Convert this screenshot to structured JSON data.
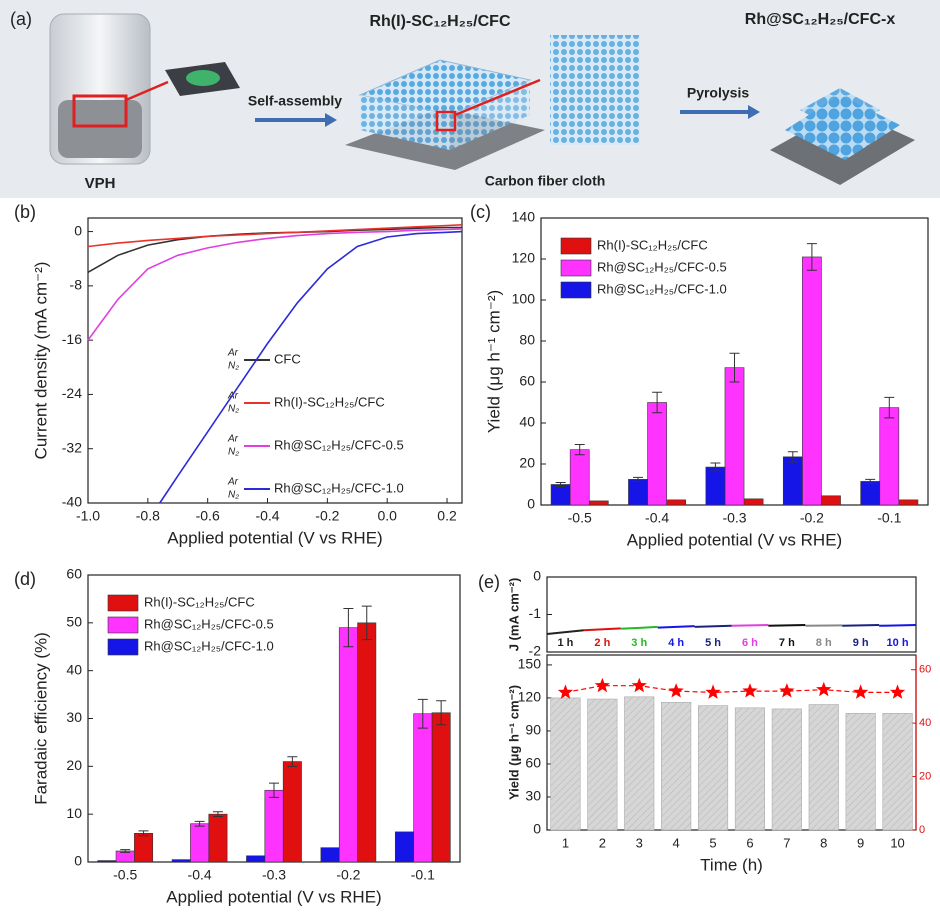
{
  "schematic": {
    "panel_label": "(a)",
    "vial_label": "VPH",
    "step1": "Self-assembly",
    "intermediate": "Rh(I)-SC₁₂H₂₅/CFC",
    "substrate": "Carbon fiber cloth",
    "step2": "Pyrolysis",
    "product": "Rh@SC₁₂H₂₅/CFC-x"
  },
  "chart_data": [
    {
      "type": "line",
      "panel_label": "(b)",
      "x_label": "Applied potential (V vs RHE)",
      "y_label": "Current density (mA cm⁻²)",
      "xlim": [
        -1,
        0.25
      ],
      "xticks": [
        {
          "value": -1,
          "label": "-1.0"
        },
        -0.8,
        -0.6,
        -0.4,
        -0.2,
        {
          "value": 0,
          "label": "0.0"
        },
        0.2
      ],
      "ylim": [
        -40,
        2
      ],
      "yticks": [
        -40,
        -32,
        -24,
        -16,
        -8,
        0
      ],
      "legend_gases": [
        "Ar",
        "N₂"
      ],
      "series": [
        {
          "name": "CFC",
          "color": "#333333",
          "x": [
            -1,
            -0.9,
            -0.8,
            -0.7,
            -0.6,
            -0.5,
            -0.4,
            -0.3,
            -0.2,
            -0.1,
            0,
            0.1,
            0.2,
            0.25
          ],
          "values": [
            -6,
            -3.5,
            -2,
            -1.2,
            -0.7,
            -0.4,
            -0.2,
            -0.1,
            0,
            0.2,
            0.3,
            0.5,
            0.6,
            0.6
          ]
        },
        {
          "name": "Rh(I)-SC₁₂H₂₅/CFC",
          "color": "#e8322b",
          "x": [
            -1,
            -0.9,
            -0.8,
            -0.7,
            -0.6,
            -0.5,
            -0.4,
            -0.3,
            -0.2,
            -0.1,
            0,
            0.1,
            0.2,
            0.25
          ],
          "values": [
            -2.2,
            -1.7,
            -1.3,
            -1,
            -0.7,
            -0.5,
            -0.3,
            -0.1,
            0.1,
            0.3,
            0.5,
            0.7,
            0.9,
            1
          ]
        },
        {
          "name": "Rh@SC₁₂H₂₅/CFC-0.5",
          "color": "#e040e0",
          "x": [
            -1,
            -0.9,
            -0.8,
            -0.7,
            -0.6,
            -0.5,
            -0.4,
            -0.3,
            -0.2,
            -0.1,
            0,
            0.1,
            0.2,
            0.25
          ],
          "values": [
            -16,
            -10,
            -5.5,
            -3.5,
            -2.4,
            -1.6,
            -1,
            -0.6,
            -0.3,
            -0.1,
            0,
            0.2,
            0.3,
            0.4
          ]
        },
        {
          "name": "Rh@SC₁₂H₂₅/CFC-1.0",
          "color": "#2b2bd8",
          "x": [
            -0.76,
            -0.7,
            -0.6,
            -0.5,
            -0.4,
            -0.3,
            -0.2,
            -0.1,
            0,
            0.1,
            0.2,
            0.25
          ],
          "values": [
            -40,
            -36,
            -29.5,
            -23,
            -16.5,
            -10.5,
            -5.5,
            -2.2,
            -0.8,
            -0.3,
            -0.1,
            0
          ]
        }
      ]
    },
    {
      "type": "bar",
      "panel_label": "(c)",
      "x_label": "Applied potential (V vs RHE)",
      "y_label": "Yield (μg h⁻¹ cm⁻²)",
      "categories": [
        "-0.5",
        "-0.4",
        "-0.3",
        "-0.2",
        "-0.1"
      ],
      "ylim": [
        0,
        140
      ],
      "yticks": [
        0,
        20,
        40,
        60,
        80,
        100,
        120,
        140
      ],
      "series": [
        {
          "name": "Rh(I)-SC₁₂H₂₅/CFC",
          "color": "#e01010",
          "values": [
            2,
            2.5,
            3,
            4.5,
            2.5
          ]
        },
        {
          "name": "Rh@SC₁₂H₂₅/CFC-0.5",
          "color": "#ff33ff",
          "values": [
            27,
            50,
            67,
            121,
            47.5
          ],
          "errors": [
            2.5,
            5,
            7,
            6.5,
            5
          ]
        },
        {
          "name": "Rh@SC₁₂H₂₅/CFC-1.0",
          "color": "#1515e8",
          "values": [
            10,
            12.5,
            18.5,
            23.5,
            11.5
          ],
          "errors": [
            1,
            1,
            2,
            2.5,
            1
          ]
        }
      ]
    },
    {
      "type": "bar",
      "panel_label": "(d)",
      "x_label": "Applied potential (V vs RHE)",
      "y_label": "Faradaic efficiency (%)",
      "categories": [
        "-0.5",
        "-0.4",
        "-0.3",
        "-0.2",
        "-0.1"
      ],
      "ylim": [
        0,
        60
      ],
      "yticks": [
        0,
        10,
        20,
        30,
        40,
        50,
        60
      ],
      "series": [
        {
          "name": "Rh(I)-SC₁₂H₂₅/CFC",
          "color": "#e01010",
          "values": [
            6,
            10,
            21,
            50,
            31.2
          ],
          "errors": [
            0.5,
            0.5,
            1,
            3.5,
            2.5
          ]
        },
        {
          "name": "Rh@SC₁₂H₂₅/CFC-0.5",
          "color": "#ff33ff",
          "values": [
            2.3,
            8,
            15,
            49,
            31
          ],
          "errors": [
            0.3,
            0.5,
            1.5,
            4,
            3
          ]
        },
        {
          "name": "Rh@SC₁₂H₂₅/CFC-1.0",
          "color": "#1515e8",
          "values": [
            0.3,
            0.5,
            1.3,
            3,
            6.3
          ]
        }
      ]
    },
    {
      "type": "line",
      "panel_label": "(e)",
      "y_label": "J (mA cm⁻²)",
      "ylim": [
        -2,
        0
      ],
      "yticks": [
        -2,
        -1,
        0
      ],
      "series": [
        {
          "name": "1 h",
          "color": "#222222",
          "values": [
            -1.52,
            -1.42
          ]
        },
        {
          "name": "2 h",
          "color": "#e01010",
          "values": [
            -1.42,
            -1.37
          ]
        },
        {
          "name": "3 h",
          "color": "#22bb22",
          "values": [
            -1.38,
            -1.33
          ]
        },
        {
          "name": "4 h",
          "color": "#1515e8",
          "values": [
            -1.35,
            -1.31
          ]
        },
        {
          "name": "5 h",
          "color": "#1a237e",
          "values": [
            -1.33,
            -1.3
          ]
        },
        {
          "name": "6 h",
          "color": "#e040e0",
          "values": [
            -1.3,
            -1.28
          ]
        },
        {
          "name": "7 h",
          "color": "#111111",
          "values": [
            -1.3,
            -1.28
          ]
        },
        {
          "name": "8 h",
          "color": "#888888",
          "values": [
            -1.3,
            -1.29
          ]
        },
        {
          "name": "9 h",
          "color": "#1a237e",
          "values": [
            -1.3,
            -1.28
          ]
        },
        {
          "name": "10 h",
          "color": "#1515e8",
          "values": [
            -1.3,
            -1.28
          ]
        }
      ]
    },
    {
      "type": "bar",
      "x_label": "Time (h)",
      "y_label": "Yield (μg h⁻¹ cm⁻²)",
      "categories": [
        "1",
        "2",
        "3",
        "4",
        "5",
        "6",
        "7",
        "8",
        "9",
        "10"
      ],
      "ylim": [
        0,
        159
      ],
      "yticks": [
        0,
        30,
        60,
        90,
        120,
        150
      ],
      "y2lim": [
        0,
        65.5
      ],
      "y2ticks": [
        0,
        20,
        40,
        60
      ],
      "series": [
        {
          "color": "#d3d3d3",
          "values": [
            120,
            119,
            121,
            116,
            113,
            111,
            110,
            114,
            106,
            106
          ]
        },
        {
          "color": "#ff0000",
          "axis": "y2",
          "marker": "star",
          "values": [
            51.5,
            54,
            54,
            52,
            51.5,
            52,
            52,
            52.5,
            51.5,
            51.5
          ]
        }
      ]
    }
  ]
}
